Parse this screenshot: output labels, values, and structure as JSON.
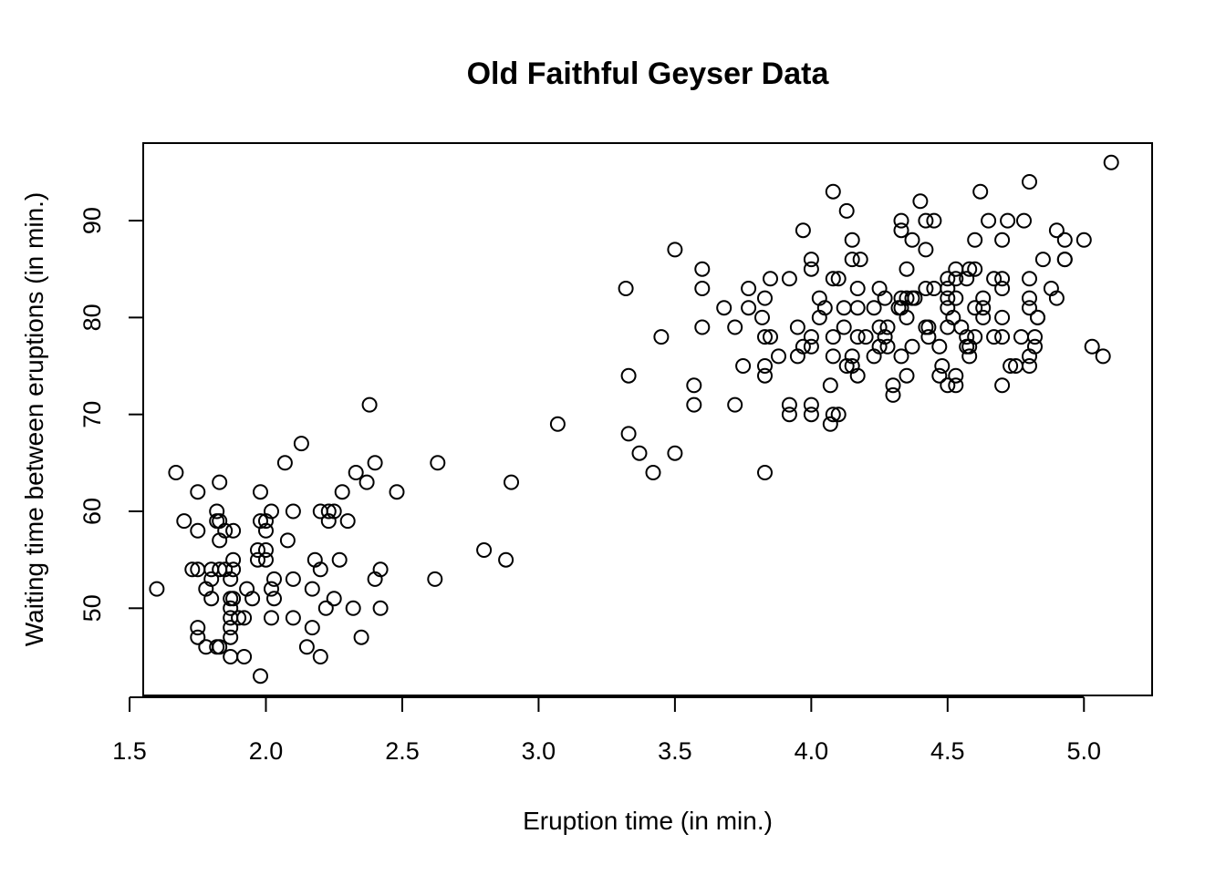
{
  "chart_data": {
    "type": "scatter",
    "title": "Old Faithful Geyser Data",
    "xlabel": "Eruption time (in min.)",
    "ylabel": "Waiting time between eruptions (in min.)",
    "xlim": [
      1.55,
      5.25
    ],
    "ylim": [
      41,
      98
    ],
    "xticks": [
      1.5,
      2.0,
      2.5,
      3.0,
      3.5,
      4.0,
      4.5,
      5.0
    ],
    "xtick_labels": [
      "1.5",
      "2.0",
      "2.5",
      "3.0",
      "3.5",
      "4.0",
      "4.5",
      "5.0"
    ],
    "yticks": [
      50,
      60,
      70,
      80,
      90
    ],
    "ytick_labels": [
      "50",
      "60",
      "70",
      "80",
      "90"
    ],
    "grid": false,
    "marker": "open-circle",
    "points": [
      [
        1.6,
        52
      ],
      [
        1.67,
        64
      ],
      [
        1.7,
        59
      ],
      [
        1.73,
        54
      ],
      [
        1.75,
        54
      ],
      [
        1.75,
        62
      ],
      [
        1.75,
        58
      ],
      [
        1.75,
        48
      ],
      [
        1.75,
        47
      ],
      [
        1.78,
        52
      ],
      [
        1.78,
        46
      ],
      [
        1.8,
        54
      ],
      [
        1.8,
        53
      ],
      [
        1.8,
        51
      ],
      [
        1.82,
        60
      ],
      [
        1.82,
        59
      ],
      [
        1.82,
        46
      ],
      [
        1.83,
        59
      ],
      [
        1.83,
        63
      ],
      [
        1.83,
        57
      ],
      [
        1.83,
        54
      ],
      [
        1.83,
        46
      ],
      [
        1.85,
        58
      ],
      [
        1.85,
        54
      ],
      [
        1.87,
        53
      ],
      [
        1.87,
        51
      ],
      [
        1.87,
        50
      ],
      [
        1.87,
        49
      ],
      [
        1.87,
        48
      ],
      [
        1.87,
        47
      ],
      [
        1.87,
        45
      ],
      [
        1.88,
        58
      ],
      [
        1.88,
        55
      ],
      [
        1.88,
        54
      ],
      [
        1.88,
        51
      ],
      [
        1.9,
        49
      ],
      [
        1.92,
        49
      ],
      [
        1.92,
        45
      ],
      [
        1.93,
        52
      ],
      [
        1.95,
        51
      ],
      [
        1.97,
        56
      ],
      [
        1.97,
        55
      ],
      [
        1.98,
        62
      ],
      [
        1.98,
        59
      ],
      [
        1.98,
        43
      ],
      [
        2.0,
        59
      ],
      [
        2.0,
        58
      ],
      [
        2.0,
        56
      ],
      [
        2.0,
        55
      ],
      [
        2.02,
        60
      ],
      [
        2.02,
        52
      ],
      [
        2.02,
        49
      ],
      [
        2.03,
        53
      ],
      [
        2.03,
        51
      ],
      [
        2.07,
        65
      ],
      [
        2.08,
        57
      ],
      [
        2.1,
        60
      ],
      [
        2.1,
        53
      ],
      [
        2.1,
        49
      ],
      [
        2.13,
        67
      ],
      [
        2.15,
        46
      ],
      [
        2.17,
        52
      ],
      [
        2.17,
        48
      ],
      [
        2.18,
        55
      ],
      [
        2.2,
        60
      ],
      [
        2.2,
        54
      ],
      [
        2.2,
        45
      ],
      [
        2.22,
        50
      ],
      [
        2.23,
        60
      ],
      [
        2.23,
        59
      ],
      [
        2.25,
        60
      ],
      [
        2.25,
        51
      ],
      [
        2.27,
        55
      ],
      [
        2.28,
        62
      ],
      [
        2.3,
        59
      ],
      [
        2.32,
        50
      ],
      [
        2.33,
        64
      ],
      [
        2.35,
        47
      ],
      [
        2.37,
        63
      ],
      [
        2.38,
        71
      ],
      [
        2.4,
        65
      ],
      [
        2.4,
        53
      ],
      [
        2.42,
        54
      ],
      [
        2.42,
        50
      ],
      [
        2.48,
        62
      ],
      [
        2.62,
        53
      ],
      [
        2.63,
        65
      ],
      [
        2.8,
        56
      ],
      [
        2.88,
        55
      ],
      [
        2.9,
        63
      ],
      [
        3.07,
        69
      ],
      [
        3.32,
        83
      ],
      [
        3.33,
        74
      ],
      [
        3.33,
        68
      ],
      [
        3.37,
        66
      ],
      [
        3.42,
        64
      ],
      [
        3.45,
        78
      ],
      [
        3.5,
        87
      ],
      [
        3.5,
        66
      ],
      [
        3.57,
        73
      ],
      [
        3.57,
        71
      ],
      [
        3.6,
        85
      ],
      [
        3.6,
        83
      ],
      [
        3.6,
        79
      ],
      [
        3.68,
        81
      ],
      [
        3.72,
        79
      ],
      [
        3.72,
        71
      ],
      [
        3.75,
        75
      ],
      [
        3.77,
        83
      ],
      [
        3.77,
        81
      ],
      [
        3.82,
        80
      ],
      [
        3.83,
        82
      ],
      [
        3.83,
        78
      ],
      [
        3.83,
        75
      ],
      [
        3.83,
        74
      ],
      [
        3.83,
        64
      ],
      [
        3.85,
        84
      ],
      [
        3.85,
        78
      ],
      [
        3.88,
        76
      ],
      [
        3.92,
        84
      ],
      [
        3.92,
        71
      ],
      [
        3.92,
        70
      ],
      [
        3.95,
        79
      ],
      [
        3.95,
        76
      ],
      [
        3.97,
        89
      ],
      [
        3.97,
        77
      ],
      [
        4.0,
        86
      ],
      [
        4.0,
        85
      ],
      [
        4.0,
        78
      ],
      [
        4.0,
        77
      ],
      [
        4.0,
        71
      ],
      [
        4.0,
        70
      ],
      [
        4.03,
        82
      ],
      [
        4.03,
        80
      ],
      [
        4.05,
        81
      ],
      [
        4.07,
        73
      ],
      [
        4.07,
        69
      ],
      [
        4.08,
        93
      ],
      [
        4.08,
        84
      ],
      [
        4.08,
        78
      ],
      [
        4.08,
        76
      ],
      [
        4.08,
        70
      ],
      [
        4.1,
        84
      ],
      [
        4.1,
        70
      ],
      [
        4.12,
        81
      ],
      [
        4.12,
        79
      ],
      [
        4.13,
        91
      ],
      [
        4.13,
        75
      ],
      [
        4.15,
        88
      ],
      [
        4.15,
        86
      ],
      [
        4.15,
        76
      ],
      [
        4.15,
        75
      ],
      [
        4.17,
        83
      ],
      [
        4.17,
        81
      ],
      [
        4.17,
        78
      ],
      [
        4.17,
        74
      ],
      [
        4.18,
        86
      ],
      [
        4.2,
        78
      ],
      [
        4.23,
        81
      ],
      [
        4.23,
        76
      ],
      [
        4.25,
        83
      ],
      [
        4.25,
        79
      ],
      [
        4.25,
        77
      ],
      [
        4.27,
        82
      ],
      [
        4.27,
        78
      ],
      [
        4.28,
        79
      ],
      [
        4.28,
        77
      ],
      [
        4.3,
        73
      ],
      [
        4.3,
        72
      ],
      [
        4.32,
        81
      ],
      [
        4.33,
        90
      ],
      [
        4.33,
        89
      ],
      [
        4.33,
        82
      ],
      [
        4.33,
        81
      ],
      [
        4.33,
        76
      ],
      [
        4.35,
        85
      ],
      [
        4.35,
        82
      ],
      [
        4.35,
        80
      ],
      [
        4.35,
        74
      ],
      [
        4.37,
        88
      ],
      [
        4.37,
        82
      ],
      [
        4.37,
        77
      ],
      [
        4.38,
        82
      ],
      [
        4.4,
        92
      ],
      [
        4.42,
        90
      ],
      [
        4.42,
        87
      ],
      [
        4.42,
        83
      ],
      [
        4.42,
        79
      ],
      [
        4.43,
        79
      ],
      [
        4.43,
        78
      ],
      [
        4.45,
        90
      ],
      [
        4.45,
        83
      ],
      [
        4.47,
        77
      ],
      [
        4.47,
        74
      ],
      [
        4.48,
        75
      ],
      [
        4.5,
        84
      ],
      [
        4.5,
        83
      ],
      [
        4.5,
        82
      ],
      [
        4.5,
        81
      ],
      [
        4.5,
        79
      ],
      [
        4.5,
        73
      ],
      [
        4.52,
        80
      ],
      [
        4.53,
        85
      ],
      [
        4.53,
        84
      ],
      [
        4.53,
        82
      ],
      [
        4.53,
        74
      ],
      [
        4.53,
        73
      ],
      [
        4.55,
        79
      ],
      [
        4.57,
        84
      ],
      [
        4.57,
        78
      ],
      [
        4.57,
        77
      ],
      [
        4.58,
        85
      ],
      [
        4.58,
        77
      ],
      [
        4.58,
        76
      ],
      [
        4.6,
        88
      ],
      [
        4.6,
        85
      ],
      [
        4.6,
        81
      ],
      [
        4.6,
        78
      ],
      [
        4.62,
        93
      ],
      [
        4.63,
        82
      ],
      [
        4.63,
        81
      ],
      [
        4.63,
        80
      ],
      [
        4.65,
        90
      ],
      [
        4.67,
        84
      ],
      [
        4.67,
        78
      ],
      [
        4.7,
        88
      ],
      [
        4.7,
        84
      ],
      [
        4.7,
        83
      ],
      [
        4.7,
        80
      ],
      [
        4.7,
        78
      ],
      [
        4.7,
        73
      ],
      [
        4.72,
        90
      ],
      [
        4.73,
        75
      ],
      [
        4.75,
        75
      ],
      [
        4.77,
        78
      ],
      [
        4.78,
        90
      ],
      [
        4.8,
        94
      ],
      [
        4.8,
        84
      ],
      [
        4.8,
        82
      ],
      [
        4.8,
        81
      ],
      [
        4.8,
        76
      ],
      [
        4.8,
        75
      ],
      [
        4.82,
        78
      ],
      [
        4.82,
        77
      ],
      [
        4.83,
        80
      ],
      [
        4.83,
        80
      ],
      [
        4.85,
        86
      ],
      [
        4.88,
        83
      ],
      [
        4.9,
        89
      ],
      [
        4.9,
        82
      ],
      [
        4.93,
        88
      ],
      [
        4.93,
        86
      ],
      [
        4.93,
        86
      ],
      [
        5.0,
        88
      ],
      [
        5.03,
        77
      ],
      [
        5.07,
        76
      ],
      [
        5.1,
        96
      ]
    ]
  }
}
